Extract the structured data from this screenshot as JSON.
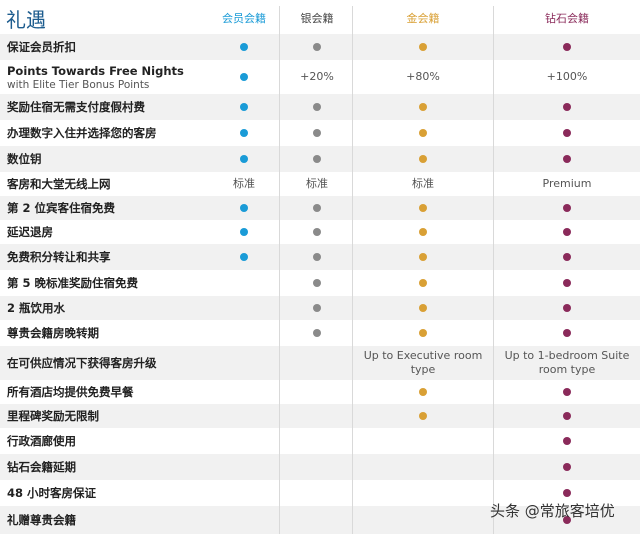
{
  "title": "礼遇",
  "tiers": [
    {
      "name": "会员会籍",
      "color": "#1a9bd7"
    },
    {
      "name": "银会籍",
      "color": "#8a8a8a"
    },
    {
      "name": "金会籍",
      "color": "#d9a035"
    },
    {
      "name": "钻石会籍",
      "color": "#8a2a5a"
    }
  ],
  "rows": [
    {
      "label": "保证会员折扣",
      "cells": [
        "dot",
        "dot",
        "dot",
        "dot"
      ]
    },
    {
      "label": "Points Towards Free Nights",
      "sublabel": "with Elite Tier Bonus Points",
      "cells": [
        "dot",
        "+20%",
        "+80%",
        "+100%"
      ]
    },
    {
      "label": "奖励住宿无需支付度假村费",
      "cells": [
        "dot",
        "dot",
        "dot",
        "dot"
      ]
    },
    {
      "label": "办理数字入住并选择您的客房",
      "cells": [
        "dot",
        "dot",
        "dot",
        "dot"
      ]
    },
    {
      "label": "数位钥",
      "cells": [
        "dot",
        "dot",
        "dot",
        "dot"
      ]
    },
    {
      "label": "客房和大堂无线上网",
      "cells": [
        "标准",
        "标准",
        "标准",
        "Premium"
      ]
    },
    {
      "label": "第 2 位宾客住宿免费",
      "cells": [
        "dot",
        "dot",
        "dot",
        "dot"
      ]
    },
    {
      "label": "延迟退房",
      "cells": [
        "dot",
        "dot",
        "dot",
        "dot"
      ]
    },
    {
      "label": "免费积分转让和共享",
      "cells": [
        "dot",
        "dot",
        "dot",
        "dot"
      ]
    },
    {
      "label": "第 5 晚标准奖励住宿免费",
      "cells": [
        "",
        "dot",
        "dot",
        "dot"
      ]
    },
    {
      "label": "2 瓶饮用水",
      "cells": [
        "",
        "dot",
        "dot",
        "dot"
      ]
    },
    {
      "label": "尊贵会籍房晚转期",
      "cells": [
        "",
        "dot",
        "dot",
        "dot"
      ]
    },
    {
      "label": "在可供应情况下获得客房升级",
      "cells": [
        "",
        "",
        "Up to Executive room type",
        "Up to 1-bedroom Suite room type"
      ]
    },
    {
      "label": "所有酒店均提供免费早餐",
      "cells": [
        "",
        "",
        "dot",
        "dot"
      ]
    },
    {
      "label": "里程碑奖励无限制",
      "cells": [
        "",
        "",
        "dot",
        "dot"
      ]
    },
    {
      "label": "行政酒廊使用",
      "cells": [
        "",
        "",
        "",
        "dot"
      ]
    },
    {
      "label": "钻石会籍延期",
      "cells": [
        "",
        "",
        "",
        "dot"
      ]
    },
    {
      "label": "48 小时客房保证",
      "cells": [
        "",
        "",
        "",
        "dot"
      ]
    },
    {
      "label": "礼赠尊贵会籍",
      "cells": [
        "",
        "",
        "",
        "dot"
      ]
    }
  ],
  "watermark": "头条 @常旅客培优"
}
